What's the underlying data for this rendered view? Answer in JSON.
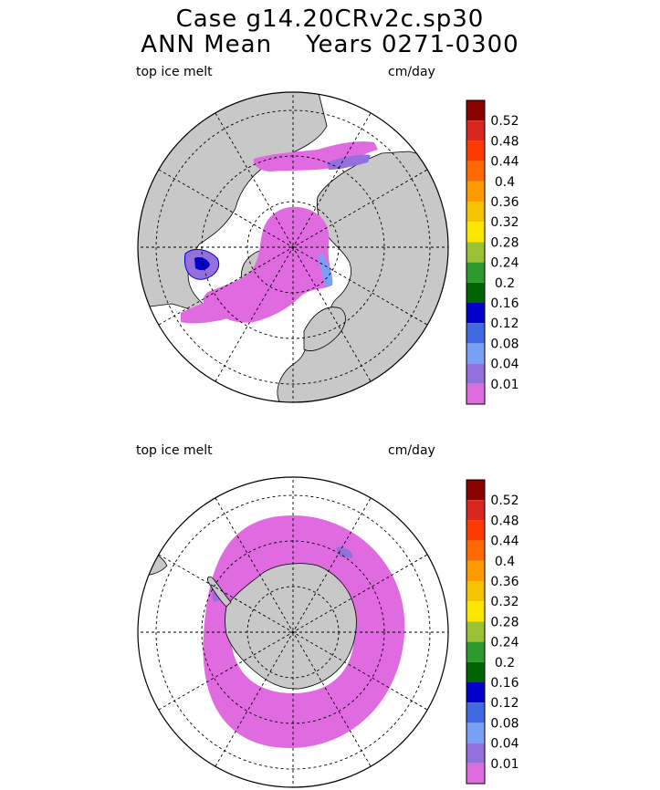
{
  "header": {
    "title_line1": "Case g14.20CRv2c.sp30",
    "title_line2": "ANN Mean    Years 0271-0300"
  },
  "panels": [
    {
      "variable": "top ice melt",
      "units": "cm/day",
      "hemisphere": "north"
    },
    {
      "variable": "top ice melt",
      "units": "cm/day",
      "hemisphere": "south"
    }
  ],
  "colorbar": {
    "labels": [
      "0.52",
      "0.48",
      "0.44",
      "0.4",
      "0.36",
      "0.32",
      "0.28",
      "0.24",
      "0.2",
      "0.16",
      "0.12",
      "0.08",
      "0.04",
      "0.01"
    ],
    "colors": [
      "#8b0000",
      "#d7261e",
      "#ff3a00",
      "#ff6a00",
      "#ff9a00",
      "#f5c400",
      "#ffe600",
      "#9ac234",
      "#2e9a2e",
      "#006400",
      "#0000c8",
      "#4169e1",
      "#7aa0f5",
      "#9370db",
      "#e06be0"
    ]
  },
  "colors": {
    "land": "#c8c8c8",
    "ice_melt_main": "#e06be0"
  }
}
